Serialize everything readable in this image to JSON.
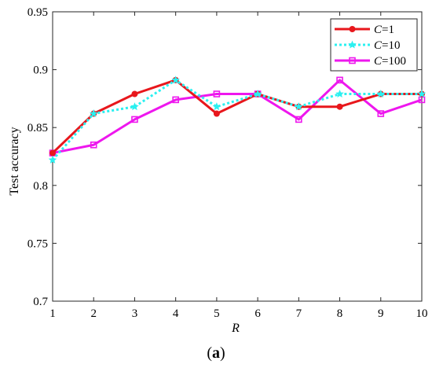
{
  "chart_data": {
    "type": "line",
    "x": [
      1,
      2,
      3,
      4,
      5,
      6,
      7,
      8,
      9,
      10
    ],
    "xlabel": "R",
    "ylabel": "Test accuracy",
    "xlim": [
      1,
      10
    ],
    "ylim": [
      0.7,
      0.95
    ],
    "xticks": [
      "1",
      "2",
      "3",
      "4",
      "5",
      "6",
      "7",
      "8",
      "9",
      "10"
    ],
    "yticks": [
      "0.7",
      "0.75",
      "0.8",
      "0.85",
      "0.9",
      "0.95"
    ],
    "ytick_values": [
      0.7,
      0.75,
      0.8,
      0.85,
      0.9,
      0.95
    ],
    "grid": false,
    "legend_position": "top-right",
    "series": [
      {
        "name_var": "C",
        "name_eq": "=1",
        "color": "#e8171c",
        "style": "solid",
        "marker": "circle",
        "values": [
          0.828,
          0.862,
          0.879,
          0.891,
          0.862,
          0.879,
          0.868,
          0.868,
          0.879,
          0.879
        ]
      },
      {
        "name_var": "C",
        "name_eq": "=10",
        "color": "#2bf0f0",
        "style": "dotted",
        "marker": "star",
        "values": [
          0.822,
          0.862,
          0.868,
          0.891,
          0.868,
          0.879,
          0.868,
          0.879,
          0.879,
          0.879
        ]
      },
      {
        "name_var": "C",
        "name_eq": "=100",
        "color": "#ee17ee",
        "style": "solid",
        "marker": "square",
        "values": [
          0.828,
          0.835,
          0.857,
          0.874,
          0.879,
          0.879,
          0.857,
          0.891,
          0.862,
          0.874
        ]
      }
    ]
  },
  "caption": {
    "open": "(",
    "label": "a",
    "close": ")"
  }
}
